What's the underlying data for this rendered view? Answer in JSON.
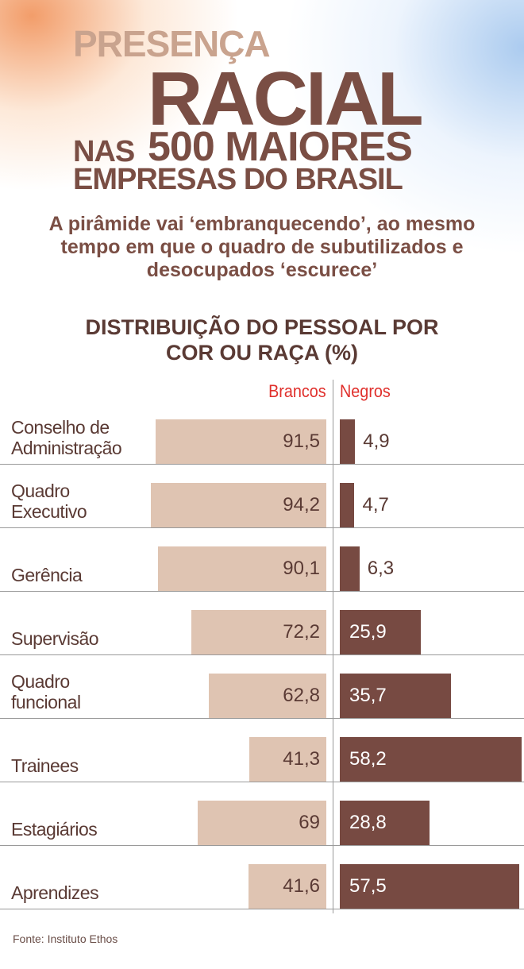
{
  "chart_data": {
    "type": "diverging-bar",
    "title_lines": [
      "PRESENÇA",
      "RACIAL",
      "NAS",
      "500 MAIORES",
      "EMPRESAS DO BRASIL"
    ],
    "subtitle": "A pirâmide vai ‘embranquecendo’, ao mesmo tempo em que o quadro de subutilizados e desocupados ‘escurece’",
    "chart_title": "DISTRIBUIÇÃO DO PESSOAL POR COR OU RAÇA (%)",
    "categories": [
      "Conselho de Administração",
      "Quadro Executivo",
      "Gerência",
      "Supervisão",
      "Quadro funcional",
      "Trainees",
      "Estagiários",
      "Aprendizes"
    ],
    "series": [
      {
        "name": "Brancos",
        "color": "#dfc4b2",
        "xlim": [
          0,
          100
        ],
        "values": [
          91.5,
          94.2,
          90.1,
          72.2,
          62.8,
          41.3,
          69,
          41.6
        ],
        "value_labels": [
          "91,5",
          "94,2",
          "90,1",
          "72,2",
          "62,8",
          "41,3",
          "69",
          "41,6"
        ]
      },
      {
        "name": "Negros",
        "color": "#774a42",
        "xlim": [
          0,
          60
        ],
        "values": [
          4.9,
          4.7,
          6.3,
          25.9,
          35.7,
          58.2,
          28.8,
          57.5
        ],
        "value_labels": [
          "4,9",
          "4,7",
          "6,3",
          "25,9",
          "35,7",
          "58,2",
          "28,8",
          "57,5"
        ]
      }
    ],
    "source": "Fonte: Instituto Ethos"
  }
}
